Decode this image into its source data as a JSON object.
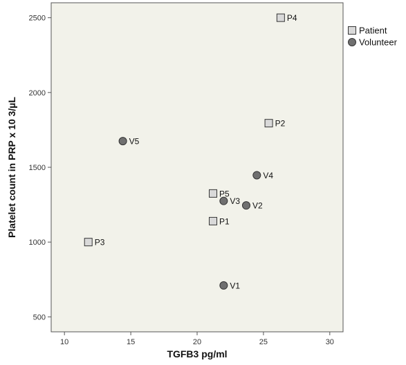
{
  "chart_data": {
    "type": "scatter",
    "title": "",
    "xlabel": "TGFB3 pg/ml",
    "ylabel": "Platelet count in PRP x 10 3/µL",
    "xlim": [
      9,
      31
    ],
    "ylim": [
      400,
      2600
    ],
    "x_ticks": [
      10,
      15,
      20,
      25,
      30
    ],
    "y_ticks": [
      500,
      1000,
      1500,
      2000,
      2500
    ],
    "grid": false,
    "legend_position": "top-right",
    "background": "#f2f2ea",
    "series": [
      {
        "name": "Patient",
        "marker": "square",
        "color": "#d9d9d9",
        "points": [
          {
            "label": "P1",
            "x": 21.2,
            "y": 1140
          },
          {
            "label": "P2",
            "x": 25.4,
            "y": 1795
          },
          {
            "label": "P3",
            "x": 11.8,
            "y": 1000
          },
          {
            "label": "P4",
            "x": 26.3,
            "y": 2500
          },
          {
            "label": "P5",
            "x": 21.2,
            "y": 1325
          }
        ]
      },
      {
        "name": "Volunteer",
        "marker": "circle",
        "color": "#707070",
        "points": [
          {
            "label": "V1",
            "x": 22.0,
            "y": 710
          },
          {
            "label": "V2",
            "x": 23.7,
            "y": 1245
          },
          {
            "label": "V3",
            "x": 22.0,
            "y": 1275
          },
          {
            "label": "V4",
            "x": 24.5,
            "y": 1447
          },
          {
            "label": "V5",
            "x": 14.4,
            "y": 1675
          }
        ]
      }
    ]
  }
}
